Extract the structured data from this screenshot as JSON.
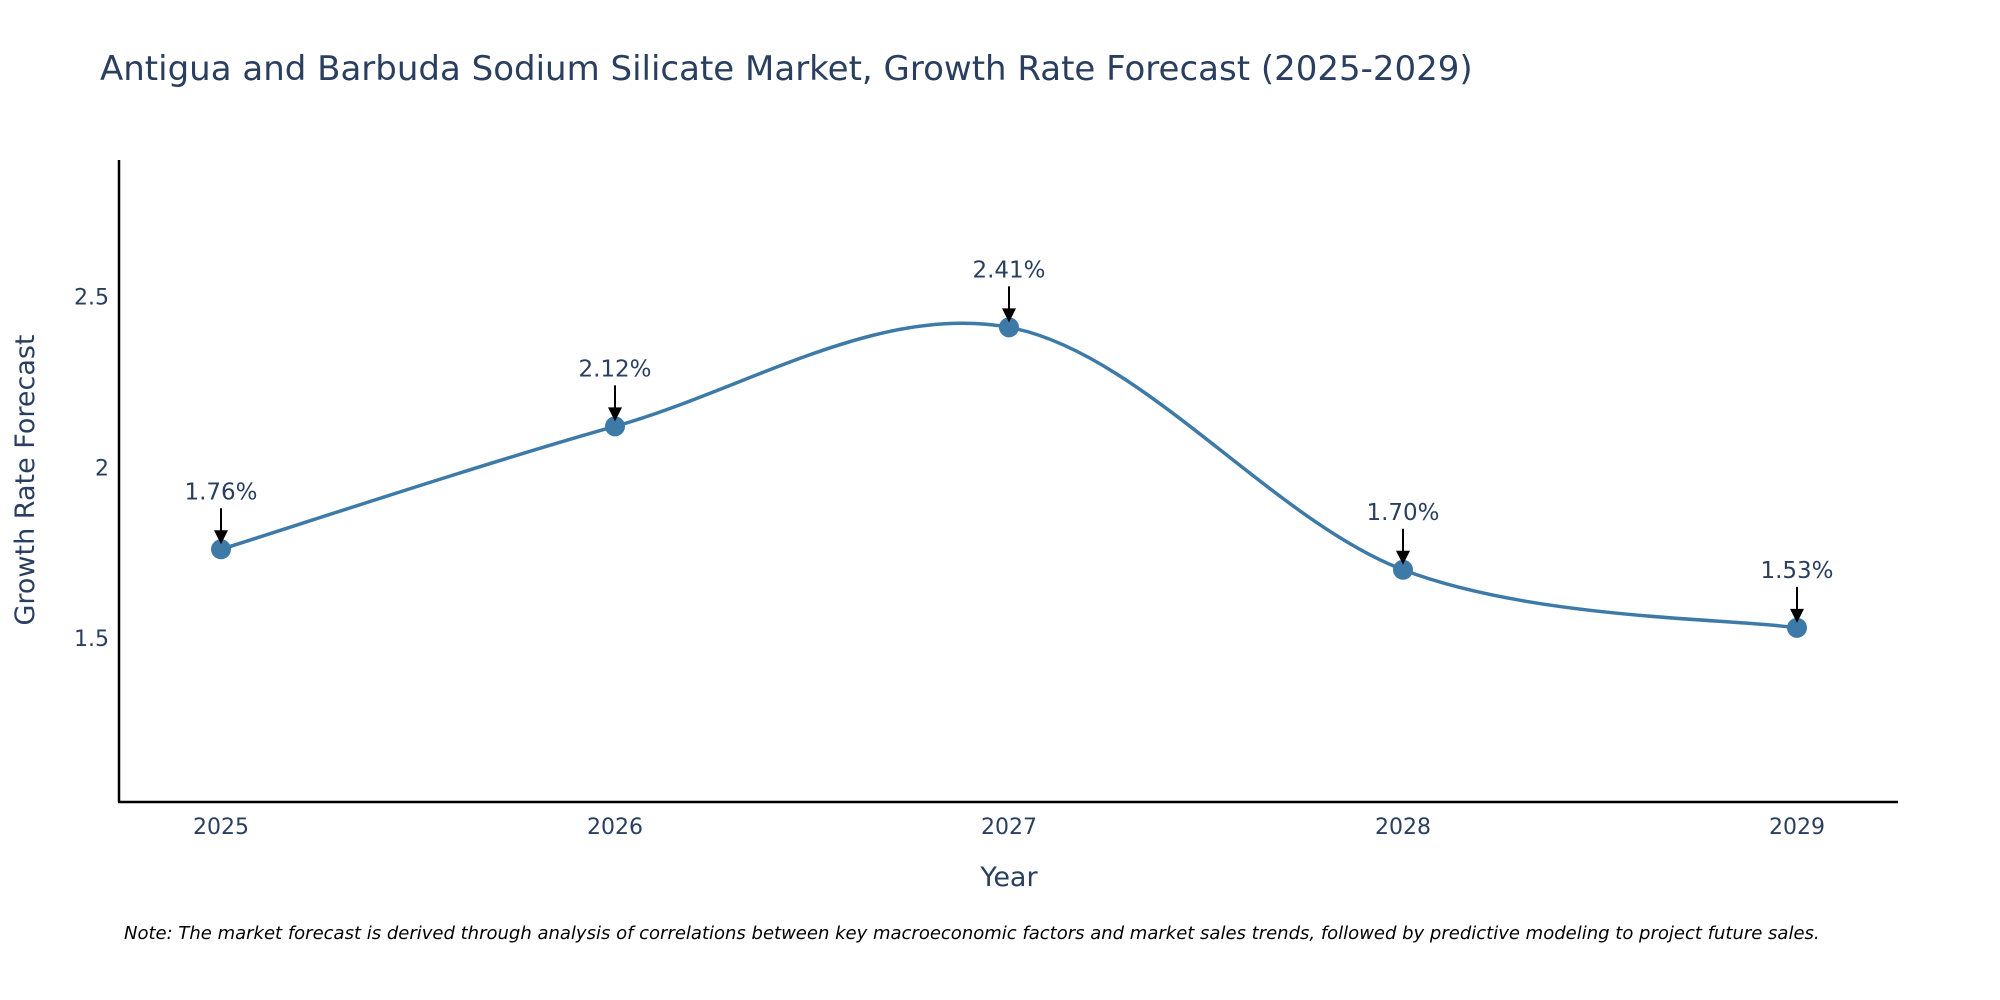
{
  "chart_data": {
    "type": "line",
    "title": "Antigua and Barbuda Sodium Silicate Market, Growth Rate Forecast (2025-2029)",
    "xlabel": "Year",
    "ylabel": "Growth Rate Forecast",
    "categories": [
      "2025",
      "2026",
      "2027",
      "2028",
      "2029"
    ],
    "series": [
      {
        "name": "Growth Rate Forecast",
        "values": [
          1.76,
          2.12,
          2.41,
          1.7,
          1.53
        ],
        "labels": [
          "1.76%",
          "2.12%",
          "2.41%",
          "1.70%",
          "1.53%"
        ]
      }
    ],
    "ylim": [
      1.02,
      2.9
    ],
    "yticks": [
      1.5,
      2,
      2.5
    ],
    "ytick_labels": [
      "1.5",
      "2",
      "2.5"
    ],
    "grid": false,
    "line_shape": "spline",
    "note": "Note: The market forecast is derived through analysis of correlations between key macroeconomic factors and market sales trends, followed by predictive modeling to project future sales.",
    "colors": {
      "line": "#3d7aa8",
      "marker": "#3d7aa8",
      "axis": "#000000",
      "text": "#2a3f5f",
      "arrow": "#000000"
    }
  }
}
